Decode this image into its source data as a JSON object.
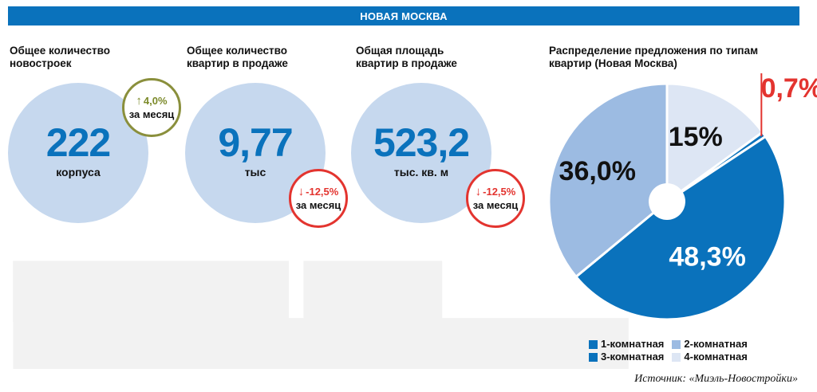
{
  "banner": "НОВАЯ МОСКВА",
  "stats": [
    {
      "title": "Общее количество\nновостроек",
      "value": "222",
      "unit": "корпуса",
      "change": "4,0%",
      "direction": "up",
      "period": "за месяц"
    },
    {
      "title": "Общее количество\nквартир в продаже",
      "value": "9,77",
      "unit": "тыс",
      "change": "-12,5%",
      "direction": "down",
      "period": "за месяц"
    },
    {
      "title": "Общая площадь\nквартир в продаже",
      "value": "523,2",
      "unit": "тыс. кв. м",
      "change": "-12,5%",
      "direction": "down",
      "period": "за месяц"
    }
  ],
  "chart_data": {
    "type": "pie",
    "title": "Распределение предложения по типам квартир (Новая Москва)",
    "slices": [
      {
        "label": "1-комнатная",
        "value": 48.3,
        "display": "48,3%",
        "color": "#0a72bc"
      },
      {
        "label": "2-комнатная",
        "value": 36.0,
        "display": "36,0%",
        "color": "#9cbbe2"
      },
      {
        "label": "4-комнатная",
        "value": 15.0,
        "display": "15%",
        "color": "#dde6f4"
      },
      {
        "label": "3-комнатная",
        "value": 0.7,
        "display": "0,7%",
        "color": "#0a72bc"
      }
    ]
  },
  "legend": [
    {
      "label": "1-комнатная",
      "color": "#0a72bc"
    },
    {
      "label": "2-комнатная",
      "color": "#9cbbe2"
    },
    {
      "label": "3-комнатная",
      "color": "#0a72bc"
    },
    {
      "label": "4-комнатная",
      "color": "#dde6f4"
    }
  ],
  "source": "Источник: «Миэль-Новостройки»",
  "colors": {
    "accent": "#0a72bc",
    "bubble": "#c6d8ee",
    "negative": "#e3342f",
    "positive": "#7c8a2a"
  }
}
